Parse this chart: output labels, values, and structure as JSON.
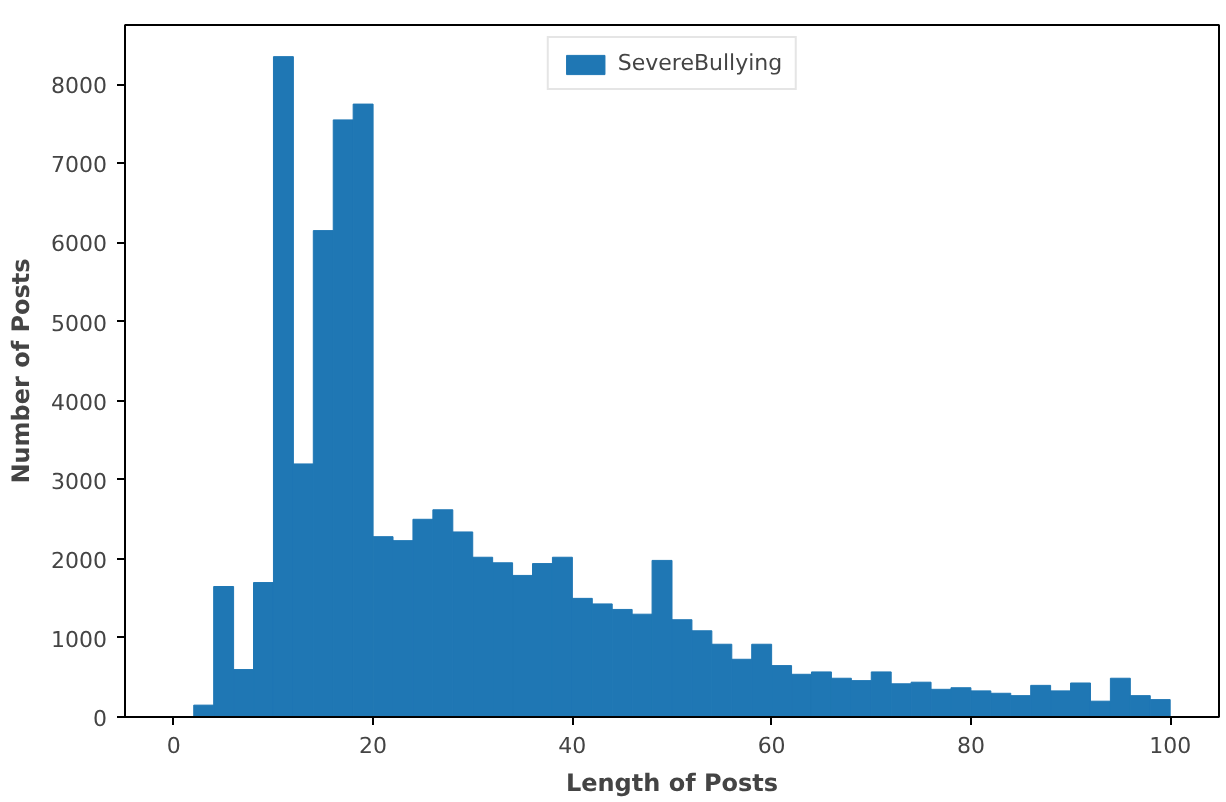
{
  "chart_data": {
    "type": "histogram",
    "xlabel": "Length of Posts",
    "ylabel": "Number of Posts",
    "bins": [
      2,
      4,
      6,
      8,
      10,
      12,
      14,
      16,
      18,
      20,
      22,
      24,
      26,
      28,
      30,
      32,
      34,
      36,
      38,
      40,
      42,
      44,
      46,
      48,
      50,
      52,
      54,
      56,
      58,
      60,
      62,
      64,
      66,
      68,
      70,
      72,
      74,
      76,
      78,
      80,
      82,
      84,
      86,
      88,
      90,
      92,
      94,
      96,
      98,
      100
    ],
    "series": [
      {
        "name": "SevereBullying",
        "color": "#1f77b4",
        "values": [
          150,
          1650,
          600,
          1700,
          8350,
          3200,
          6150,
          7550,
          7750,
          2280,
          2230,
          2500,
          2620,
          2340,
          2020,
          1950,
          1790,
          1940,
          2020,
          1500,
          1430,
          1360,
          1300,
          1980,
          1230,
          1090,
          920,
          730,
          920,
          650,
          540,
          570,
          490,
          460,
          570,
          420,
          440,
          350,
          370,
          330,
          300,
          270,
          400,
          330,
          430,
          200,
          490,
          270,
          220
        ]
      }
    ],
    "xlim": [
      -4.9,
      104.9
    ],
    "ylim": [
      0,
      8750
    ],
    "xticks": [
      0,
      20,
      40,
      60,
      80,
      100
    ],
    "yticks": [
      0,
      1000,
      2000,
      3000,
      4000,
      5000,
      6000,
      7000,
      8000
    ],
    "grid": false,
    "legend": "top"
  }
}
